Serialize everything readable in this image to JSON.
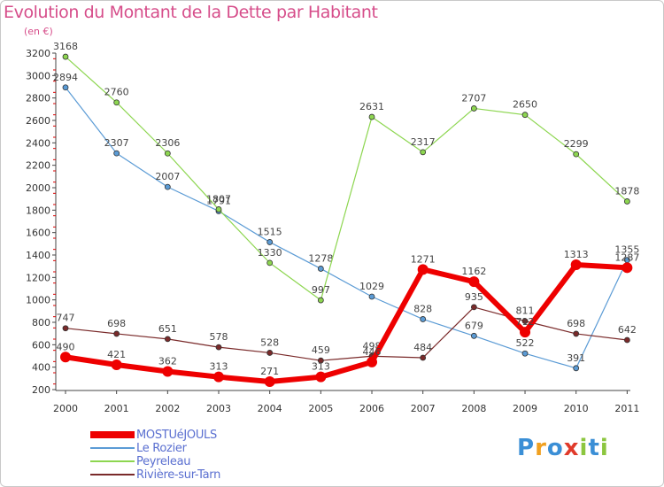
{
  "title": "Evolution du Montant de la Dette par Habitant",
  "subtitle": "(en €)",
  "logo": {
    "text": "Proxiti",
    "letters": [
      "P",
      "r",
      "o",
      "x",
      "i",
      "t",
      "i"
    ],
    "colors": [
      "#3b8fd6",
      "#f0a020",
      "#3b8fd6",
      "#e03a2a",
      "#8cc63f",
      "#3b8fd6",
      "#8cc63f"
    ]
  },
  "chart_data": {
    "type": "line",
    "categories": [
      "2000",
      "2001",
      "2002",
      "2003",
      "2004",
      "2005",
      "2006",
      "2007",
      "2008",
      "2009",
      "2010",
      "2011"
    ],
    "ylim": [
      200,
      3200
    ],
    "yticks": [
      200,
      400,
      600,
      800,
      1000,
      1200,
      1400,
      1600,
      1800,
      2000,
      2200,
      2400,
      2600,
      2800,
      3000,
      3200
    ],
    "grid": false,
    "legend_position": "bottom-left",
    "series": [
      {
        "name": "Le Rozier",
        "color": "#5b9bd5",
        "width": 1.2,
        "marker": 3,
        "values": [
          2894,
          2307,
          2007,
          1791,
          1515,
          1278,
          1029,
          828,
          679,
          522,
          391,
          1355
        ]
      },
      {
        "name": "Peyreleau",
        "color": "#8dd650",
        "width": 1.2,
        "marker": 3,
        "values": [
          3168,
          2760,
          2306,
          1807,
          1330,
          997,
          2631,
          2317,
          2707,
          2650,
          2299,
          1878
        ]
      },
      {
        "name": "Rivière-sur-Tarn",
        "color": "#7a2a2a",
        "width": 1.2,
        "marker": 3,
        "values": [
          747,
          698,
          651,
          578,
          528,
          459,
          498,
          484,
          935,
          811,
          698,
          642
        ]
      },
      {
        "name": "MOSTUéJOULS",
        "color": "#ee0000",
        "width": 6,
        "marker": 6,
        "values": [
          490,
          421,
          362,
          313,
          271,
          313,
          446,
          1271,
          1162,
          712,
          1313,
          1287
        ]
      }
    ],
    "legend_order": [
      "MOSTUéJOULS",
      "Le Rozier",
      "Peyreleau",
      "Rivière-sur-Tarn"
    ]
  }
}
